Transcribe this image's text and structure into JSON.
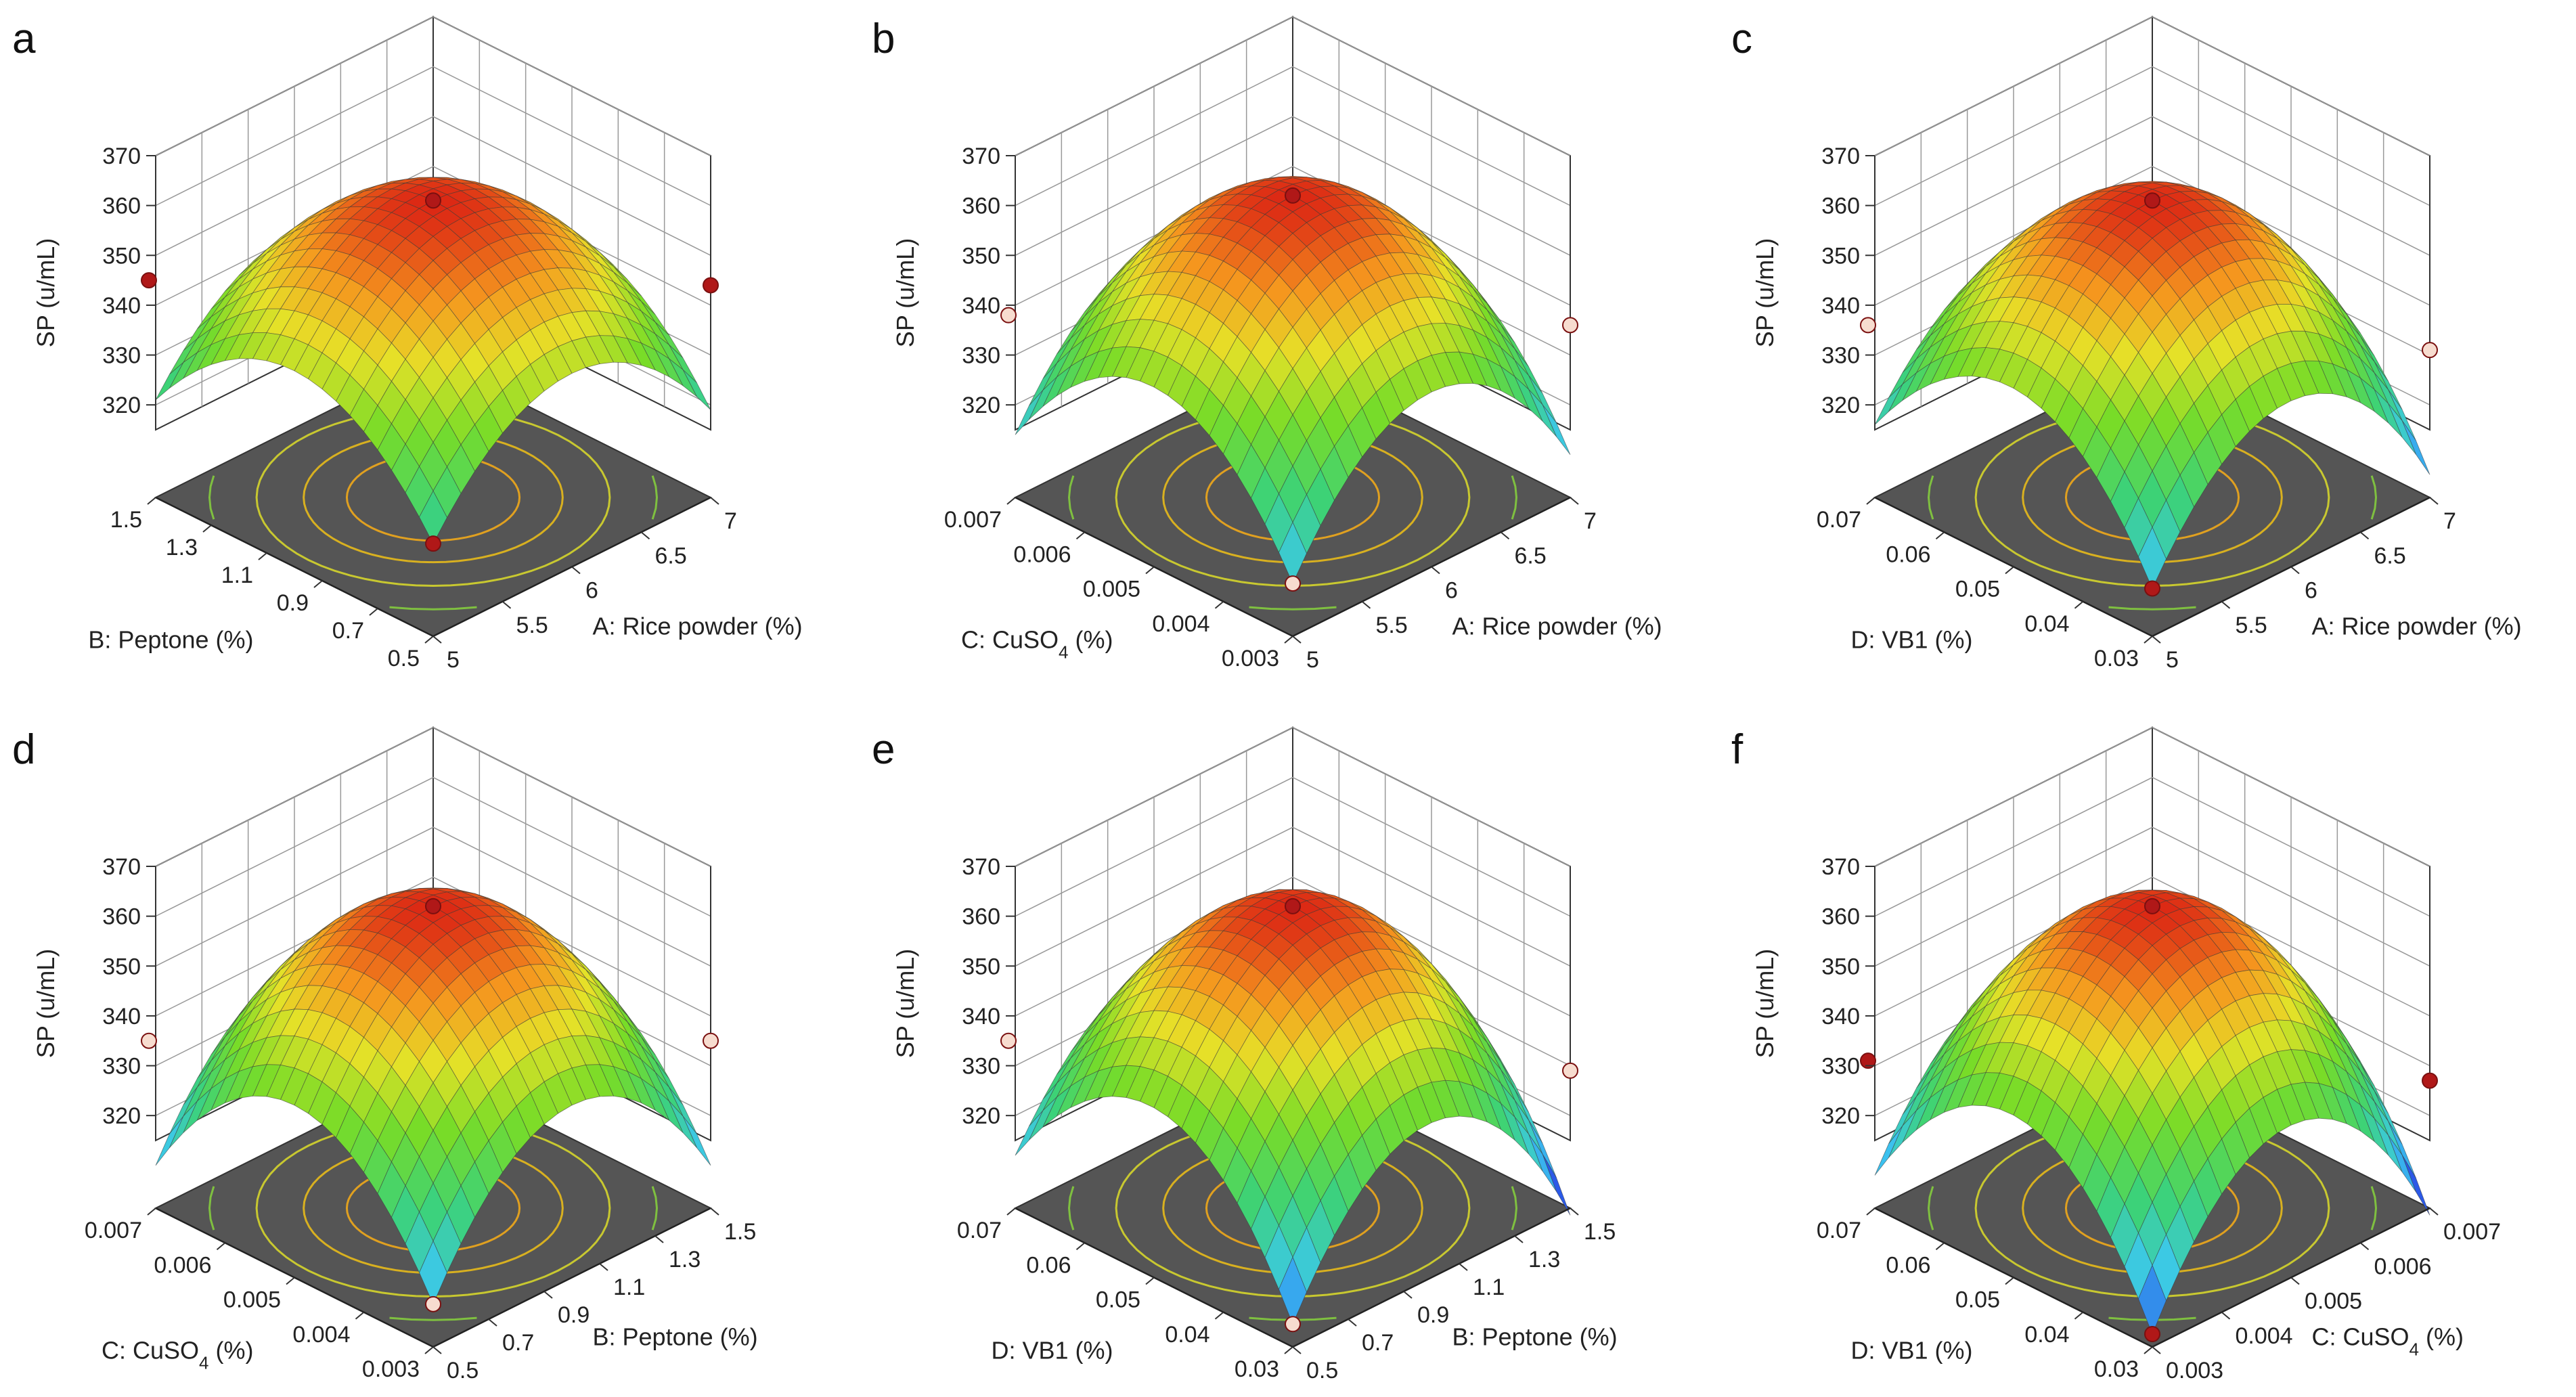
{
  "figure_title": "",
  "chart_data": [
    {
      "type": "surface",
      "panel_label": "a",
      "zlabel": "SP (u/mL)",
      "z_ticks": [
        "370",
        "360",
        "350",
        "340",
        "330",
        "320"
      ],
      "zlim": [
        315,
        370
      ],
      "x_label": "A: Rice powder (%)",
      "x_ticks": [
        "5",
        "5.5",
        "6",
        "6.5",
        "7"
      ],
      "y_label": "B: Peptone (%)",
      "y_label_sub": "",
      "y_label_post": "",
      "y_ticks": [
        "1.5",
        "1.3",
        "1.1",
        "0.9",
        "0.7",
        "0.5"
      ],
      "peak": 361,
      "corner_back_left": 345,
      "corner_front_right": 344,
      "corner_front": 320,
      "points": [
        {
          "pos": "center",
          "value": 361,
          "above": true
        },
        {
          "pos": "left",
          "value": 345,
          "above": true
        },
        {
          "pos": "right",
          "value": 344,
          "above": true
        },
        {
          "pos": "front",
          "value": 320,
          "above": true
        }
      ]
    },
    {
      "type": "surface",
      "panel_label": "b",
      "zlabel": "SP (u/mL)",
      "z_ticks": [
        "370",
        "360",
        "350",
        "340",
        "330",
        "320"
      ],
      "zlim": [
        315,
        370
      ],
      "x_label": "A: Rice powder (%)",
      "x_ticks": [
        "5",
        "5.5",
        "6",
        "6.5",
        "7"
      ],
      "y_label": "C: CuSO",
      "y_label_sub": "4",
      "y_label_post": " (%)",
      "y_ticks": [
        "0.007",
        "0.006",
        "0.005",
        "0.004",
        "0.003"
      ],
      "peak": 362,
      "corner_back_left": 338,
      "corner_front_right": 336,
      "corner_front": 312,
      "points": [
        {
          "pos": "center",
          "value": 362,
          "above": true
        },
        {
          "pos": "left",
          "value": 338,
          "above": false
        },
        {
          "pos": "right",
          "value": 336,
          "above": false
        },
        {
          "pos": "front",
          "value": 312,
          "above": false
        }
      ]
    },
    {
      "type": "surface",
      "panel_label": "c",
      "zlabel": "SP (u/mL)",
      "z_ticks": [
        "370",
        "360",
        "350",
        "340",
        "330",
        "320"
      ],
      "zlim": [
        315,
        370
      ],
      "x_label": "A: Rice  powder (%)",
      "x_ticks": [
        "5",
        "5.5",
        "6",
        "6.5",
        "7"
      ],
      "y_label": "D: VB1 (%)",
      "y_label_sub": "",
      "y_label_post": "",
      "y_ticks": [
        "0.07",
        "0.06",
        "0.05",
        "0.04",
        "0.03"
      ],
      "peak": 361,
      "corner_back_left": 336,
      "corner_front_right": 331,
      "corner_front": 311,
      "points": [
        {
          "pos": "center",
          "value": 361,
          "above": true
        },
        {
          "pos": "left",
          "value": 336,
          "above": false
        },
        {
          "pos": "right",
          "value": 331,
          "above": false
        },
        {
          "pos": "front",
          "value": 311,
          "above": true
        }
      ]
    },
    {
      "type": "surface",
      "panel_label": "d",
      "zlabel": "SP (u/mL)",
      "z_ticks": [
        "370",
        "360",
        "350",
        "340",
        "330",
        "320"
      ],
      "zlim": [
        315,
        370
      ],
      "x_label": "B: Peptone (%)",
      "x_ticks": [
        "0.5",
        "0.7",
        "0.9",
        "1.1",
        "1.3",
        "1.5"
      ],
      "y_label": "C: CuSO",
      "y_label_sub": "4",
      "y_label_post": " (%)",
      "y_ticks": [
        "0.007",
        "0.006",
        "0.005",
        "0.004",
        "0.003"
      ],
      "peak": 362,
      "corner_back_left": 335,
      "corner_front_right": 335,
      "corner_front": 310,
      "points": [
        {
          "pos": "center",
          "value": 362,
          "above": true
        },
        {
          "pos": "left",
          "value": 335,
          "above": false
        },
        {
          "pos": "right",
          "value": 335,
          "above": false
        },
        {
          "pos": "front",
          "value": 310,
          "above": false
        }
      ]
    },
    {
      "type": "surface",
      "panel_label": "e",
      "zlabel": "SP (u/mL)",
      "z_ticks": [
        "370",
        "360",
        "350",
        "340",
        "330",
        "320"
      ],
      "zlim": [
        315,
        370
      ],
      "x_label": "B: Peptone (%)",
      "x_ticks": [
        "0.5",
        "0.7",
        "0.9",
        "1.1",
        "1.3",
        "1.5"
      ],
      "y_label": "D: VB1 (%)",
      "y_label_sub": "",
      "y_label_post": "",
      "y_ticks": [
        "0.07",
        "0.06",
        "0.05",
        "0.04",
        "0.03"
      ],
      "peak": 362,
      "corner_back_left": 335,
      "corner_front_right": 329,
      "corner_front": 306,
      "points": [
        {
          "pos": "center",
          "value": 362,
          "above": true
        },
        {
          "pos": "left",
          "value": 335,
          "above": false
        },
        {
          "pos": "right",
          "value": 329,
          "above": false
        },
        {
          "pos": "front",
          "value": 306,
          "above": false
        }
      ]
    },
    {
      "type": "surface",
      "panel_label": "f",
      "zlabel": "SP (u/mL)",
      "z_ticks": [
        "370",
        "360",
        "350",
        "340",
        "330",
        "320"
      ],
      "zlim": [
        315,
        370
      ],
      "x_label": "C: CuSO",
      "x_label_sub": "4",
      "x_label_post": " (%)",
      "x_ticks": [
        "0.003",
        "0.004",
        "0.005",
        "0.006",
        "0.007"
      ],
      "y_label": "D: VB1 (%)",
      "y_label_sub": "",
      "y_label_post": "",
      "y_ticks": [
        "0.07",
        "0.06",
        "0.05",
        "0.04",
        "0.03"
      ],
      "peak": 362,
      "corner_back_left": 331,
      "corner_front_right": 327,
      "corner_front": 304,
      "points": [
        {
          "pos": "center",
          "value": 362,
          "above": true
        },
        {
          "pos": "left",
          "value": 331,
          "above": true
        },
        {
          "pos": "right",
          "value": 327,
          "above": true
        },
        {
          "pos": "front",
          "value": 304,
          "above": true
        }
      ]
    }
  ]
}
